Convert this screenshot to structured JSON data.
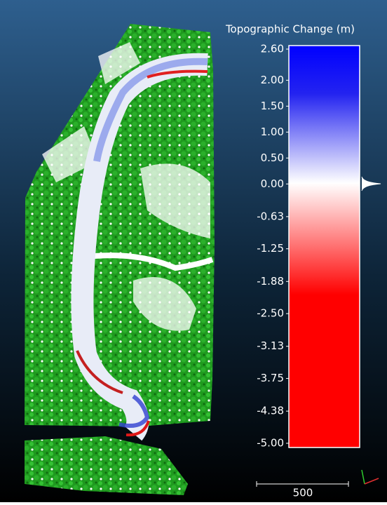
{
  "colorbar": {
    "title": "Topographic Change (m)",
    "ticks": [
      "2.60",
      "2.00",
      "1.50",
      "1.00",
      "0.50",
      "0.00",
      "-0.63",
      "-1.25",
      "-1.88",
      "-2.50",
      "-3.13",
      "-3.75",
      "-4.38",
      "-5.00"
    ]
  },
  "scale_bar": {
    "label": "500"
  }
}
